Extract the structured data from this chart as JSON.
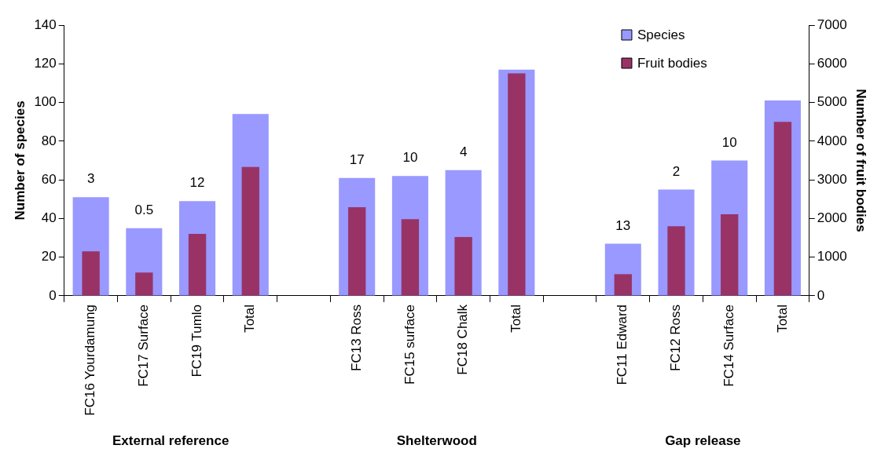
{
  "chart_data": {
    "type": "bar",
    "ylabel": "Number of species",
    "y2label": "Number of fruit bodies",
    "categories": [
      "FC16 Yourdamung",
      "FC17 Surface",
      "FC19 Tumlo",
      "Total",
      null,
      "FC13 Ross",
      "FC15 surface",
      "FC18 Chalk",
      "Total",
      null,
      "FC11 Edward",
      "FC12 Ross",
      "FC14 Surface",
      "Total"
    ],
    "series": [
      {
        "name": "Species",
        "color": "#9999ff",
        "values": [
          51,
          35,
          49,
          94,
          null,
          61,
          62,
          65,
          117,
          null,
          27,
          55,
          70,
          101
        ]
      },
      {
        "name": "Fruit bodies",
        "color": "#993366",
        "axis": "y2",
        "values": [
          1150,
          600,
          1600,
          3330,
          null,
          2290,
          1980,
          1520,
          5750,
          null,
          560,
          1800,
          2110,
          4500
        ]
      }
    ],
    "ylim": [
      0,
      140
    ],
    "yticks": [
      0,
      20,
      40,
      60,
      80,
      100,
      120,
      140
    ],
    "y2lim": [
      0,
      7000
    ],
    "y2ticks": [
      0,
      1000,
      2000,
      3000,
      4000,
      5000,
      6000,
      7000
    ],
    "legend": "top right",
    "grid": false,
    "annotations": [
      {
        "text": "3",
        "x": "FC16 Yourdamung",
        "y": 51
      },
      {
        "text": "0.5",
        "x": "FC17 Surface",
        "y": 35
      },
      {
        "text": "12",
        "x": "FC19 Tumlo",
        "y": 49
      },
      {
        "text": "17",
        "x": "FC13 Ross",
        "y": 61
      },
      {
        "text": "10",
        "x": "FC15 surface",
        "y": 62
      },
      {
        "text": "4",
        "x": "FC18 Chalk",
        "y": 65
      },
      {
        "text": "13",
        "x": "FC11 Edward",
        "y": 27
      },
      {
        "text": "2",
        "x": "FC12 Ross",
        "y": 55
      },
      {
        "text": "10",
        "x": "FC14 Surface",
        "y": 70
      },
      "External reference",
      "Shelterwood",
      "Gap release"
    ]
  }
}
